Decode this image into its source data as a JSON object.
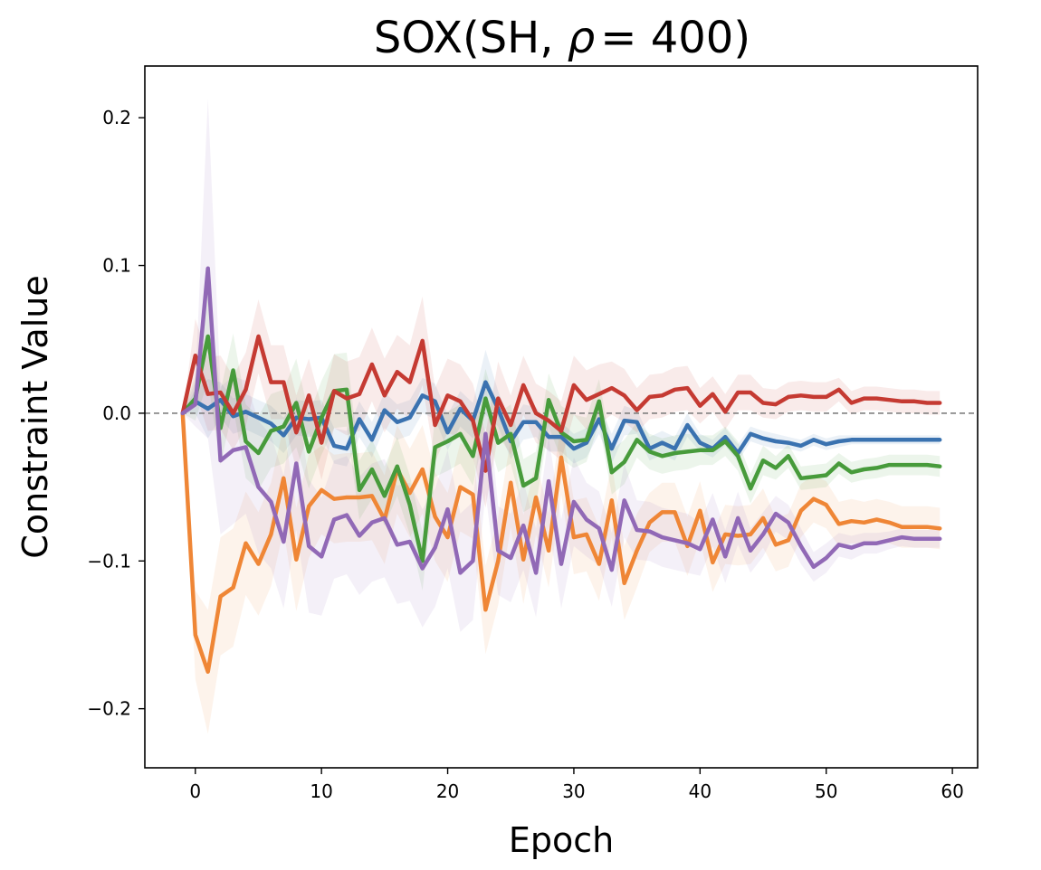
{
  "chart_data": {
    "type": "line",
    "title_parts": {
      "prefix": "SOX(SH,  ",
      "symbol": "ρ",
      "operator": "=",
      "suffix": " 400)"
    },
    "xlabel": "Epoch",
    "ylabel": "Constraint Value",
    "xlim": [
      -4,
      62
    ],
    "ylim": [
      -0.24,
      0.235
    ],
    "xticks": [
      0,
      10,
      20,
      30,
      40,
      50,
      60
    ],
    "xtick_labels": [
      "0",
      "10",
      "20",
      "30",
      "40",
      "50",
      "60"
    ],
    "yticks": [
      -0.2,
      -0.1,
      0.0,
      0.1,
      0.2
    ],
    "ytick_labels": [
      "−0.2",
      "−0.1",
      "0.0",
      "0.1",
      "0.2"
    ],
    "grid": false,
    "reference_line": {
      "y": 0.0,
      "style": "dashed",
      "color": "#808080"
    },
    "x": [
      -1,
      0,
      1,
      2,
      3,
      4,
      5,
      6,
      7,
      8,
      9,
      10,
      11,
      12,
      13,
      14,
      15,
      16,
      17,
      18,
      19,
      20,
      21,
      22,
      23,
      24,
      25,
      26,
      27,
      28,
      29,
      30,
      31,
      32,
      33,
      34,
      35,
      36,
      37,
      38,
      39,
      40,
      41,
      42,
      43,
      44,
      45,
      46,
      47,
      48,
      49,
      50,
      51,
      52,
      53,
      54,
      55,
      56,
      57,
      58,
      59
    ],
    "series": [
      {
        "color": "#3a72b0",
        "values": [
          0.0,
          0.008,
          0.003,
          0.009,
          -0.002,
          0.001,
          -0.003,
          -0.007,
          -0.015,
          -0.003,
          -0.004,
          -0.003,
          -0.022,
          -0.024,
          -0.004,
          -0.018,
          0.002,
          -0.006,
          -0.003,
          0.012,
          0.008,
          -0.013,
          0.003,
          -0.005,
          0.021,
          0.003,
          -0.019,
          -0.006,
          -0.006,
          -0.016,
          -0.016,
          -0.024,
          -0.02,
          -0.004,
          -0.024,
          -0.005,
          -0.006,
          -0.024,
          -0.02,
          -0.024,
          -0.008,
          -0.02,
          -0.024,
          -0.016,
          -0.027,
          -0.014,
          -0.017,
          -0.019,
          -0.02,
          -0.022,
          -0.018,
          -0.021,
          -0.019,
          -0.018,
          -0.018,
          -0.018,
          -0.018,
          -0.018,
          -0.018,
          -0.018,
          -0.018
        ],
        "band": [
          0.0,
          0.008,
          0.02,
          0.012,
          0.012,
          0.012,
          0.012,
          0.012,
          0.012,
          0.012,
          0.012,
          0.012,
          0.012,
          0.012,
          0.012,
          0.012,
          0.012,
          0.012,
          0.012,
          0.012,
          0.012,
          0.012,
          0.012,
          0.012,
          0.022,
          0.012,
          0.012,
          0.012,
          0.01,
          0.01,
          0.01,
          0.01,
          0.01,
          0.01,
          0.01,
          0.01,
          0.008,
          0.008,
          0.008,
          0.008,
          0.008,
          0.006,
          0.006,
          0.006,
          0.006,
          0.005,
          0.005,
          0.005,
          0.004,
          0.004,
          0.004,
          0.004,
          0.004,
          0.003,
          0.003,
          0.003,
          0.003,
          0.003,
          0.003,
          0.003,
          0.003
        ]
      },
      {
        "color": "#ef8636",
        "values": [
          0.0,
          -0.15,
          -0.175,
          -0.124,
          -0.118,
          -0.088,
          -0.102,
          -0.082,
          -0.044,
          -0.099,
          -0.063,
          -0.052,
          -0.058,
          -0.057,
          -0.057,
          -0.056,
          -0.072,
          -0.038,
          -0.054,
          -0.038,
          -0.07,
          -0.084,
          -0.05,
          -0.055,
          -0.133,
          -0.1,
          -0.047,
          -0.099,
          -0.057,
          -0.093,
          -0.03,
          -0.084,
          -0.082,
          -0.102,
          -0.059,
          -0.115,
          -0.093,
          -0.074,
          -0.067,
          -0.067,
          -0.09,
          -0.066,
          -0.101,
          -0.082,
          -0.083,
          -0.082,
          -0.071,
          -0.089,
          -0.086,
          -0.066,
          -0.058,
          -0.062,
          -0.075,
          -0.073,
          -0.074,
          -0.072,
          -0.074,
          -0.077,
          -0.077,
          -0.077,
          -0.078
        ],
        "band": [
          0.0,
          0.03,
          0.042,
          0.04,
          0.04,
          0.035,
          0.035,
          0.035,
          0.035,
          0.035,
          0.035,
          0.03,
          0.03,
          0.03,
          0.03,
          0.03,
          0.03,
          0.03,
          0.03,
          0.03,
          0.03,
          0.03,
          0.03,
          0.03,
          0.03,
          0.03,
          0.03,
          0.03,
          0.025,
          0.025,
          0.025,
          0.025,
          0.025,
          0.025,
          0.025,
          0.025,
          0.025,
          0.02,
          0.02,
          0.02,
          0.02,
          0.02,
          0.02,
          0.02,
          0.02,
          0.02,
          0.02,
          0.018,
          0.018,
          0.018,
          0.016,
          0.016,
          0.015,
          0.015,
          0.014,
          0.014,
          0.014,
          0.014,
          0.014,
          0.014,
          0.014
        ]
      },
      {
        "color": "#479b3b",
        "values": [
          0.0,
          0.01,
          0.052,
          -0.01,
          0.029,
          -0.019,
          -0.027,
          -0.012,
          -0.009,
          0.007,
          -0.026,
          -0.003,
          0.015,
          0.016,
          -0.052,
          -0.038,
          -0.056,
          -0.036,
          -0.062,
          -0.1,
          -0.023,
          -0.019,
          -0.014,
          -0.029,
          0.01,
          -0.02,
          -0.014,
          -0.049,
          -0.044,
          0.009,
          -0.013,
          -0.019,
          -0.018,
          0.008,
          -0.04,
          -0.033,
          -0.018,
          -0.026,
          -0.029,
          -0.027,
          -0.026,
          -0.025,
          -0.025,
          -0.019,
          -0.029,
          -0.051,
          -0.032,
          -0.037,
          -0.029,
          -0.044,
          -0.043,
          -0.042,
          -0.034,
          -0.04,
          -0.038,
          -0.037,
          -0.035,
          -0.035,
          -0.035,
          -0.035,
          -0.036
        ],
        "band": [
          0.0,
          0.015,
          0.03,
          0.025,
          0.025,
          0.025,
          0.025,
          0.025,
          0.025,
          0.03,
          0.025,
          0.025,
          0.025,
          0.025,
          0.02,
          0.02,
          0.02,
          0.02,
          0.02,
          0.02,
          0.02,
          0.02,
          0.02,
          0.02,
          0.02,
          0.02,
          0.02,
          0.018,
          0.018,
          0.018,
          0.018,
          0.018,
          0.015,
          0.015,
          0.015,
          0.015,
          0.012,
          0.012,
          0.012,
          0.012,
          0.012,
          0.01,
          0.01,
          0.01,
          0.01,
          0.01,
          0.01,
          0.008,
          0.008,
          0.008,
          0.008,
          0.008,
          0.007,
          0.007,
          0.007,
          0.007,
          0.007,
          0.007,
          0.007,
          0.007,
          0.007
        ]
      },
      {
        "color": "#c53a32",
        "values": [
          0.0,
          0.039,
          0.013,
          0.014,
          0.0,
          0.016,
          0.052,
          0.021,
          0.021,
          -0.013,
          0.012,
          -0.02,
          0.015,
          0.01,
          0.013,
          0.033,
          0.012,
          0.028,
          0.021,
          0.049,
          -0.008,
          0.012,
          0.008,
          -0.005,
          -0.039,
          0.01,
          -0.008,
          0.019,
          0.0,
          -0.005,
          -0.012,
          0.019,
          0.009,
          0.013,
          0.017,
          0.012,
          0.002,
          0.011,
          0.012,
          0.016,
          0.017,
          0.005,
          0.013,
          0.001,
          0.014,
          0.014,
          0.007,
          0.006,
          0.011,
          0.012,
          0.011,
          0.011,
          0.016,
          0.007,
          0.01,
          0.01,
          0.009,
          0.008,
          0.008,
          0.007,
          0.007
        ],
        "band": [
          0.0,
          0.025,
          0.025,
          0.025,
          0.025,
          0.025,
          0.025,
          0.025,
          0.025,
          0.025,
          0.025,
          0.025,
          0.025,
          0.025,
          0.025,
          0.025,
          0.025,
          0.025,
          0.025,
          0.03,
          0.025,
          0.025,
          0.025,
          0.025,
          0.025,
          0.025,
          0.02,
          0.02,
          0.02,
          0.02,
          0.02,
          0.02,
          0.02,
          0.02,
          0.018,
          0.018,
          0.015,
          0.015,
          0.015,
          0.015,
          0.015,
          0.012,
          0.012,
          0.012,
          0.012,
          0.012,
          0.01,
          0.01,
          0.01,
          0.01,
          0.01,
          0.01,
          0.008,
          0.008,
          0.008,
          0.008,
          0.008,
          0.008,
          0.008,
          0.008,
          0.008
        ]
      },
      {
        "color": "#9169b6",
        "values": [
          0.0,
          0.006,
          0.098,
          -0.032,
          -0.025,
          -0.023,
          -0.05,
          -0.06,
          -0.087,
          -0.034,
          -0.09,
          -0.097,
          -0.072,
          -0.069,
          -0.083,
          -0.074,
          -0.071,
          -0.089,
          -0.087,
          -0.105,
          -0.091,
          -0.065,
          -0.108,
          -0.1,
          -0.014,
          -0.093,
          -0.098,
          -0.076,
          -0.108,
          -0.046,
          -0.102,
          -0.06,
          -0.072,
          -0.078,
          -0.106,
          -0.059,
          -0.079,
          -0.08,
          -0.084,
          -0.086,
          -0.088,
          -0.092,
          -0.072,
          -0.097,
          -0.071,
          -0.093,
          -0.082,
          -0.068,
          -0.074,
          -0.09,
          -0.104,
          -0.098,
          -0.089,
          -0.091,
          -0.088,
          -0.088,
          -0.086,
          -0.084,
          -0.085,
          -0.085,
          -0.085
        ],
        "band": [
          0.0,
          0.015,
          0.115,
          0.05,
          0.05,
          0.045,
          0.045,
          0.045,
          0.045,
          0.045,
          0.045,
          0.04,
          0.04,
          0.04,
          0.04,
          0.04,
          0.04,
          0.04,
          0.04,
          0.04,
          0.04,
          0.04,
          0.04,
          0.04,
          0.04,
          0.03,
          0.03,
          0.03,
          0.03,
          0.03,
          0.03,
          0.03,
          0.025,
          0.025,
          0.025,
          0.025,
          0.02,
          0.02,
          0.02,
          0.02,
          0.02,
          0.018,
          0.018,
          0.018,
          0.018,
          0.015,
          0.015,
          0.012,
          0.012,
          0.012,
          0.01,
          0.01,
          0.008,
          0.008,
          0.007,
          0.007,
          0.006,
          0.006,
          0.006,
          0.006,
          0.006
        ]
      }
    ]
  }
}
